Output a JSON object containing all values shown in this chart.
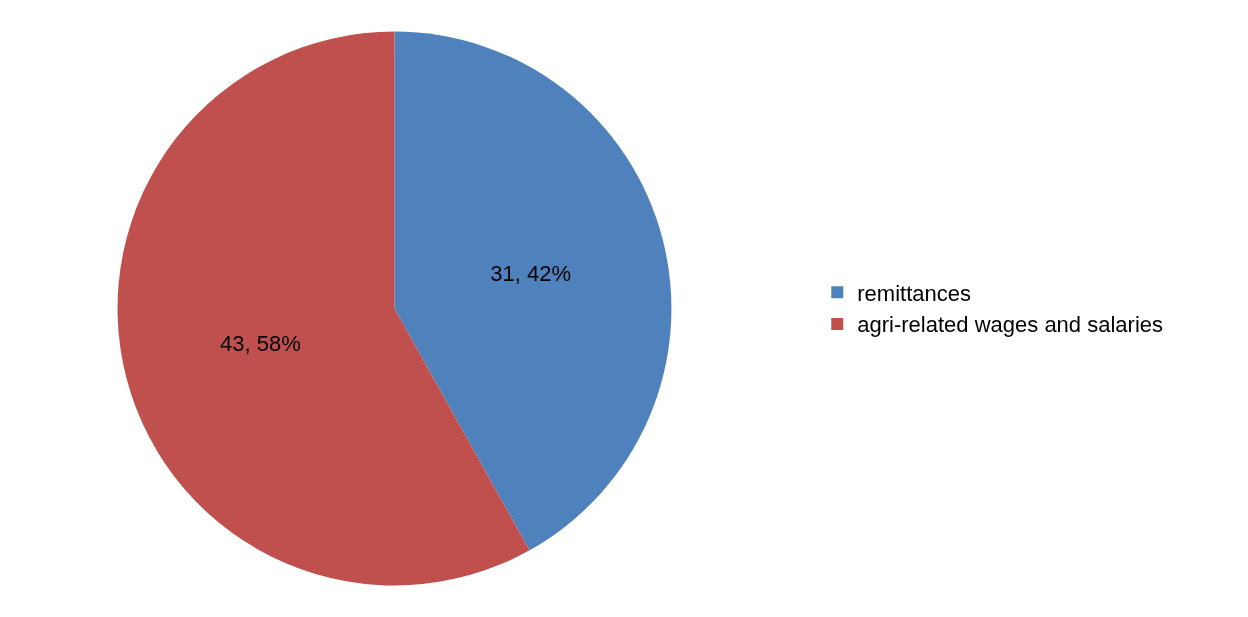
{
  "chart_data": {
    "type": "pie",
    "categories": [
      "remittances",
      "agri-related wages and salaries"
    ],
    "values": [
      31,
      43
    ],
    "value_labels": [
      "31, 42%",
      "43, 58%"
    ],
    "colors": [
      "#4f81bd",
      "#c0504d"
    ],
    "legend": "right"
  }
}
